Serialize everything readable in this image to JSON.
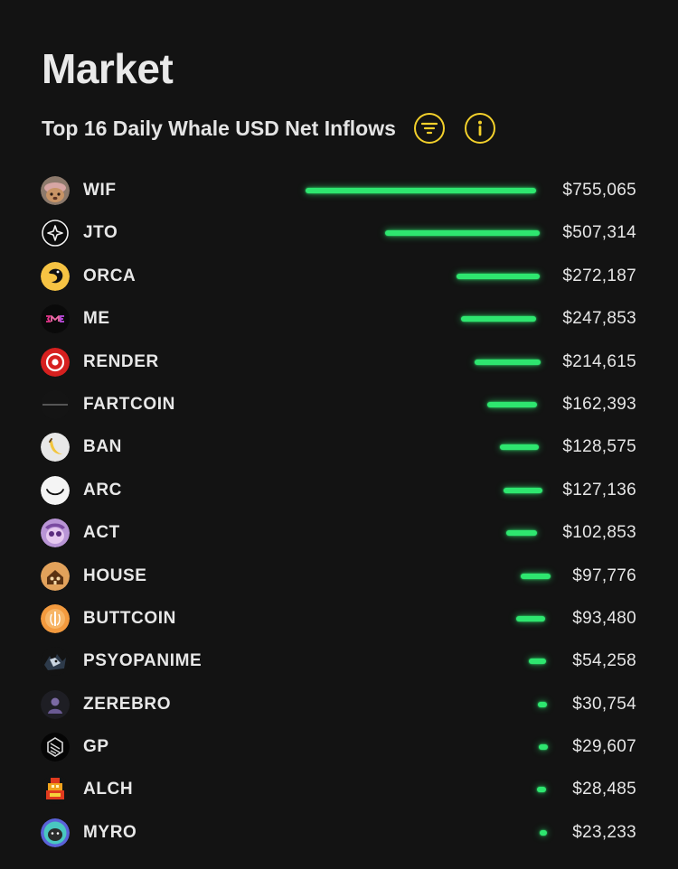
{
  "page": {
    "title": "Market",
    "subtitle": "Top 16 Daily Whale USD Net Inflows",
    "filter_icon": "filter-lines-icon",
    "info_icon": "info-icon",
    "accent_color": "#f3d02b",
    "bar_color": "#2ee66f",
    "background_color": "#131313"
  },
  "tokens": [
    {
      "symbol": "WIF",
      "value": "$755,065",
      "inflow": 755065,
      "avatar": "wif-dog-avatar"
    },
    {
      "symbol": "JTO",
      "value": "$507,314",
      "inflow": 507314,
      "avatar": "jto-avatar"
    },
    {
      "symbol": "ORCA",
      "value": "$272,187",
      "inflow": 272187,
      "avatar": "orca-avatar"
    },
    {
      "symbol": "ME",
      "value": "$247,853",
      "inflow": 247853,
      "avatar": "me-avatar"
    },
    {
      "symbol": "RENDER",
      "value": "$214,615",
      "inflow": 214615,
      "avatar": "render-avatar"
    },
    {
      "symbol": "FARTCOIN",
      "value": "$162,393",
      "inflow": 162393,
      "avatar": "fartcoin-avatar"
    },
    {
      "symbol": "BAN",
      "value": "$128,575",
      "inflow": 128575,
      "avatar": "ban-avatar"
    },
    {
      "symbol": "ARC",
      "value": "$127,136",
      "inflow": 127136,
      "avatar": "arc-avatar"
    },
    {
      "symbol": "ACT",
      "value": "$102,853",
      "inflow": 102853,
      "avatar": "act-avatar"
    },
    {
      "symbol": "HOUSE",
      "value": "$97,776",
      "inflow": 97776,
      "avatar": "house-avatar"
    },
    {
      "symbol": "BUTTCOIN",
      "value": "$93,480",
      "inflow": 93480,
      "avatar": "buttcoin-avatar"
    },
    {
      "symbol": "PSYOPANIME",
      "value": "$54,258",
      "inflow": 54258,
      "avatar": "psyopanime-avatar"
    },
    {
      "symbol": "ZEREBRO",
      "value": "$30,754",
      "inflow": 30754,
      "avatar": "zerebro-avatar"
    },
    {
      "symbol": "GP",
      "value": "$29,607",
      "inflow": 29607,
      "avatar": "gp-avatar"
    },
    {
      "symbol": "ALCH",
      "value": "$28,485",
      "inflow": 28485,
      "avatar": "alch-avatar"
    },
    {
      "symbol": "MYRO",
      "value": "$23,233",
      "inflow": 23233,
      "avatar": "myro-avatar"
    }
  ]
}
